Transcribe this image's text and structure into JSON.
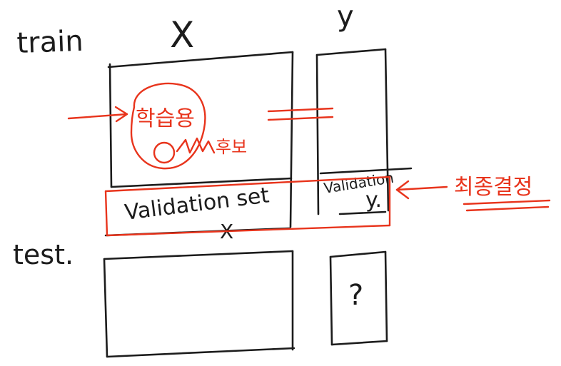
{
  "labels": {
    "train": "train",
    "test": "test.",
    "x_header": "X",
    "y_header": "y",
    "validation_set": "Validation set",
    "validation_x": "X",
    "validation_y_top": "Validation",
    "validation_y": "y.",
    "question": "?"
  },
  "annotations": {
    "training_use": "학습용",
    "candidates": "후보",
    "final_decision": "최종결정"
  },
  "colors": {
    "ink": "#1c1c1c",
    "annotation": "#e8341c",
    "background": "#ffffff"
  }
}
